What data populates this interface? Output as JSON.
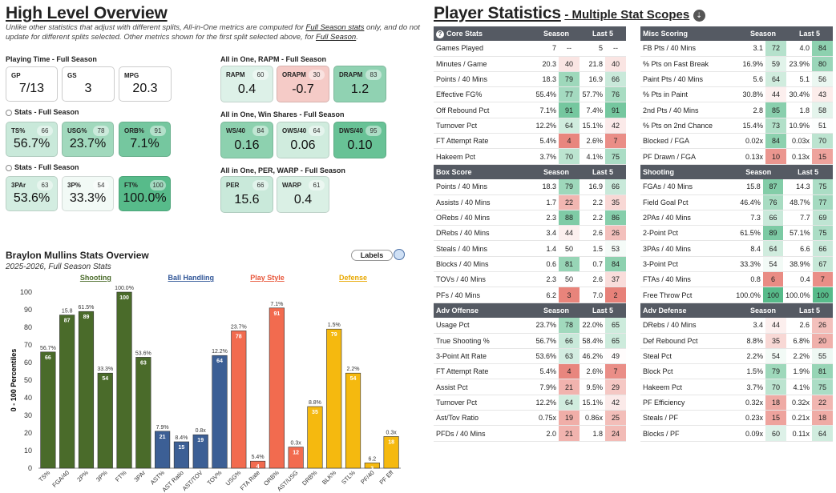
{
  "overview": {
    "title": "High Level Overview",
    "note_pre": "Unlike other statistics that adjust with different splits, All-in-One metrics are computed for ",
    "note_link1": "Full Season stats",
    "note_mid": " only, and do not update for different splits selected. Other metrics shown for the first split selected above, for ",
    "note_link2": "Full Season",
    "note_end": ".",
    "playing_time": {
      "title": "Playing Time - Full Season",
      "cards": [
        {
          "label": "GP",
          "value": "7/13"
        },
        {
          "label": "GS",
          "value": "3"
        },
        {
          "label": "MPG",
          "value": "20.3"
        }
      ]
    },
    "stats1": {
      "title": "Stats - Full Season",
      "cards": [
        {
          "label": "TS%",
          "pct": "66",
          "value": "56.7%"
        },
        {
          "label": "USG%",
          "pct": "78",
          "value": "23.7%"
        },
        {
          "label": "ORB%",
          "pct": "91",
          "value": "7.1%"
        }
      ]
    },
    "stats2": {
      "title": "Stats - Full Season",
      "cards": [
        {
          "label": "3PAr",
          "pct": "63",
          "value": "53.6%"
        },
        {
          "label": "3P%",
          "pct": "54",
          "value": "33.3%"
        },
        {
          "label": "FT%",
          "pct": "100",
          "value": "100.0%"
        }
      ]
    },
    "rapm": {
      "title": "All in One, RAPM - Full Season",
      "cards": [
        {
          "label": "RAPM",
          "pct": "60",
          "value": "0.4"
        },
        {
          "label": "ORAPM",
          "pct": "30",
          "value": "-0.7"
        },
        {
          "label": "DRAPM",
          "pct": "83",
          "value": "1.2"
        }
      ]
    },
    "winshares": {
      "title": "All in One, Win Shares - Full Season",
      "cards": [
        {
          "label": "WS/40",
          "pct": "84",
          "value": "0.16"
        },
        {
          "label": "OWS/40",
          "pct": "64",
          "value": "0.06"
        },
        {
          "label": "DWS/40",
          "pct": "95",
          "value": "0.10"
        }
      ]
    },
    "perwarp": {
      "title": "All in One, PER, WARP - Full Season",
      "cards": [
        {
          "label": "PER",
          "pct": "66",
          "value": "15.6"
        },
        {
          "label": "WARP",
          "pct": "61",
          "value": "0.4"
        }
      ]
    }
  },
  "chart_data": {
    "type": "bar",
    "title": "Braylon Mullins Stats Overview",
    "subtitle": "2025-2026, Full Season Stats",
    "labels_button": "Labels",
    "ylabel": "0 - 100 Percentiles",
    "ylim": [
      0,
      100
    ],
    "yticks": [
      "0",
      "10",
      "20",
      "30",
      "40",
      "50",
      "60",
      "70",
      "80",
      "90",
      "100"
    ],
    "groups": [
      {
        "name": "Shooting",
        "color": "#4a6b2a",
        "label_color": "#4a6b2a"
      },
      {
        "name": "Ball Handling",
        "color": "#3c5f95",
        "label_color": "#2f5597"
      },
      {
        "name": "Play Style",
        "color": "#f26b4f",
        "label_color": "#e8563a"
      },
      {
        "name": "Defense",
        "color": "#f5b90f",
        "label_color": "#e8a800"
      }
    ],
    "categories": [
      "TS%",
      "FGA/40",
      "2P%",
      "3P%",
      "FT%",
      "3PAr",
      "AST%",
      "AST Ratio",
      "AST/TOV",
      "TOV%",
      "USG%",
      "FTA Rate",
      "ORB%",
      "AST/USG",
      "DRB%",
      "BLK%",
      "STL%",
      "PF/40",
      "PF Eff"
    ],
    "group_index": [
      0,
      0,
      0,
      0,
      0,
      0,
      1,
      1,
      1,
      1,
      2,
      2,
      2,
      2,
      3,
      3,
      3,
      3,
      3
    ],
    "values": [
      66,
      87,
      89,
      54,
      100,
      63,
      21,
      15,
      19,
      64,
      78,
      4,
      91,
      12,
      35,
      79,
      54,
      3,
      18
    ],
    "raw_labels": [
      "56.7%",
      "15.8",
      "61.5%",
      "33.3%",
      "100.0%",
      "53.6%",
      "7.9%",
      "8.4%",
      "0.8x",
      "12.2%",
      "23.7%",
      "5.4%",
      "7.1%",
      "0.3x",
      "8.8%",
      "1.5%",
      "2.2%",
      "6.2",
      "0.3x"
    ]
  },
  "player_stats": {
    "title": "Player Statistics",
    "subtitle": "- Multiple Stat Scopes",
    "colors": {
      "green": "#57bb8a",
      "red": "#e67c73"
    },
    "tables": [
      {
        "title": "Core Stats",
        "col1": "Season",
        "col2": "Last 5",
        "rows": [
          {
            "label": "Games Played",
            "v1": "7",
            "p1": "--",
            "v2": "5",
            "p2": "--"
          },
          {
            "label": "Minutes / Game",
            "v1": "20.3",
            "p1": "40",
            "v2": "21.8",
            "p2": "40"
          },
          {
            "label": "Points / 40 Mins",
            "v1": "18.3",
            "p1": "79",
            "v2": "16.9",
            "p2": "66"
          },
          {
            "label": "Effective FG%",
            "v1": "55.4%",
            "p1": "77",
            "v2": "57.7%",
            "p2": "76"
          },
          {
            "label": "Off Rebound Pct",
            "v1": "7.1%",
            "p1": "91",
            "v2": "7.4%",
            "p2": "91"
          },
          {
            "label": "Turnover Pct",
            "v1": "12.2%",
            "p1": "64",
            "v2": "15.1%",
            "p2": "42"
          },
          {
            "label": "FT Attempt Rate",
            "v1": "5.4%",
            "p1": "4",
            "v2": "2.6%",
            "p2": "7"
          },
          {
            "label": "Hakeem Pct",
            "v1": "3.7%",
            "p1": "70",
            "v2": "4.1%",
            "p2": "75"
          }
        ]
      },
      {
        "title": "Misc Scoring",
        "col1": "Season",
        "col2": "Last 5",
        "rows": [
          {
            "label": "FB Pts / 40 Mins",
            "v1": "3.1",
            "p1": "72",
            "v2": "4.0",
            "p2": "84"
          },
          {
            "label": "% Pts on Fast Break",
            "v1": "16.9%",
            "p1": "59",
            "v2": "23.9%",
            "p2": "80"
          },
          {
            "label": "Paint Pts / 40 Mins",
            "v1": "5.6",
            "p1": "64",
            "v2": "5.1",
            "p2": "56"
          },
          {
            "label": "% Pts in Paint",
            "v1": "30.8%",
            "p1": "44",
            "v2": "30.4%",
            "p2": "43"
          },
          {
            "label": "2nd Pts / 40 Mins",
            "v1": "2.8",
            "p1": "85",
            "v2": "1.8",
            "p2": "58"
          },
          {
            "label": "% Pts on 2nd Chance",
            "v1": "15.4%",
            "p1": "73",
            "v2": "10.9%",
            "p2": "51"
          },
          {
            "label": "Blocked / FGA",
            "v1": "0.02x",
            "p1": "84",
            "v2": "0.03x",
            "p2": "70"
          },
          {
            "label": "PF Drawn / FGA",
            "v1": "0.13x",
            "p1": "10",
            "v2": "0.13x",
            "p2": "15"
          }
        ]
      },
      {
        "title": "Box Score",
        "col1": "Season",
        "col2": "Last 5",
        "rows": [
          {
            "label": "Points / 40 Mins",
            "v1": "18.3",
            "p1": "79",
            "v2": "16.9",
            "p2": "66"
          },
          {
            "label": "Assists / 40 Mins",
            "v1": "1.7",
            "p1": "22",
            "v2": "2.2",
            "p2": "35"
          },
          {
            "label": "ORebs / 40 Mins",
            "v1": "2.3",
            "p1": "88",
            "v2": "2.2",
            "p2": "86"
          },
          {
            "label": "DRebs / 40 Mins",
            "v1": "3.4",
            "p1": "44",
            "v2": "2.6",
            "p2": "26"
          },
          {
            "label": "Steals / 40 Mins",
            "v1": "1.4",
            "p1": "50",
            "v2": "1.5",
            "p2": "53"
          },
          {
            "label": "Blocks / 40 Mins",
            "v1": "0.6",
            "p1": "81",
            "v2": "0.7",
            "p2": "84"
          },
          {
            "label": "TOVs / 40 Mins",
            "v1": "2.3",
            "p1": "50",
            "v2": "2.6",
            "p2": "37"
          },
          {
            "label": "PFs / 40 Mins",
            "v1": "6.2",
            "p1": "3",
            "v2": "7.0",
            "p2": "2"
          }
        ]
      },
      {
        "title": "Shooting",
        "col1": "Season",
        "col2": "Last 5",
        "rows": [
          {
            "label": "FGAs / 40 Mins",
            "v1": "15.8",
            "p1": "87",
            "v2": "14.3",
            "p2": "75"
          },
          {
            "label": "Field Goal Pct",
            "v1": "46.4%",
            "p1": "76",
            "v2": "48.7%",
            "p2": "77"
          },
          {
            "label": "2PAs / 40 Mins",
            "v1": "7.3",
            "p1": "66",
            "v2": "7.7",
            "p2": "69"
          },
          {
            "label": "2-Point Pct",
            "v1": "61.5%",
            "p1": "89",
            "v2": "57.1%",
            "p2": "75"
          },
          {
            "label": "3PAs / 40 Mins",
            "v1": "8.4",
            "p1": "64",
            "v2": "6.6",
            "p2": "66"
          },
          {
            "label": "3-Point Pct",
            "v1": "33.3%",
            "p1": "54",
            "v2": "38.9%",
            "p2": "67"
          },
          {
            "label": "FTAs / 40 Mins",
            "v1": "0.8",
            "p1": "6",
            "v2": "0.4",
            "p2": "7"
          },
          {
            "label": "Free Throw Pct",
            "v1": "100.0%",
            "p1": "100",
            "v2": "100.0%",
            "p2": "100"
          }
        ]
      },
      {
        "title": "Adv Offense",
        "col1": "Season",
        "col2": "Last 5",
        "rows": [
          {
            "label": "Usage Pct",
            "v1": "23.7%",
            "p1": "78",
            "v2": "22.0%",
            "p2": "65"
          },
          {
            "label": "True Shooting %",
            "v1": "56.7%",
            "p1": "66",
            "v2": "58.4%",
            "p2": "65"
          },
          {
            "label": "3-Point Att Rate",
            "v1": "53.6%",
            "p1": "63",
            "v2": "46.2%",
            "p2": "49"
          },
          {
            "label": "FT Attempt Rate",
            "v1": "5.4%",
            "p1": "4",
            "v2": "2.6%",
            "p2": "7"
          },
          {
            "label": "Assist Pct",
            "v1": "7.9%",
            "p1": "21",
            "v2": "9.5%",
            "p2": "29"
          },
          {
            "label": "Turnover Pct",
            "v1": "12.2%",
            "p1": "64",
            "v2": "15.1%",
            "p2": "42"
          },
          {
            "label": "Ast/Tov Ratio",
            "v1": "0.75x",
            "p1": "19",
            "v2": "0.86x",
            "p2": "25"
          },
          {
            "label": "PFDs / 40 Mins",
            "v1": "2.0",
            "p1": "21",
            "v2": "1.8",
            "p2": "24"
          }
        ]
      },
      {
        "title": "Adv Defense",
        "col1": "Season",
        "col2": "Last 5",
        "rows": [
          {
            "label": "DRebs / 40 Mins",
            "v1": "3.4",
            "p1": "44",
            "v2": "2.6",
            "p2": "26"
          },
          {
            "label": "Def Rebound Pct",
            "v1": "8.8%",
            "p1": "35",
            "v2": "6.8%",
            "p2": "20"
          },
          {
            "label": "Steal Pct",
            "v1": "2.2%",
            "p1": "54",
            "v2": "2.2%",
            "p2": "55"
          },
          {
            "label": "Block Pct",
            "v1": "1.5%",
            "p1": "79",
            "v2": "1.9%",
            "p2": "81"
          },
          {
            "label": "Hakeem Pct",
            "v1": "3.7%",
            "p1": "70",
            "v2": "4.1%",
            "p2": "75"
          },
          {
            "label": "PF Efficiency",
            "v1": "0.32x",
            "p1": "18",
            "v2": "0.32x",
            "p2": "22"
          },
          {
            "label": "Steals / PF",
            "v1": "0.23x",
            "p1": "15",
            "v2": "0.21x",
            "p2": "18"
          },
          {
            "label": "Blocks / PF",
            "v1": "0.09x",
            "p1": "60",
            "v2": "0.11x",
            "p2": "64"
          }
        ]
      }
    ]
  }
}
